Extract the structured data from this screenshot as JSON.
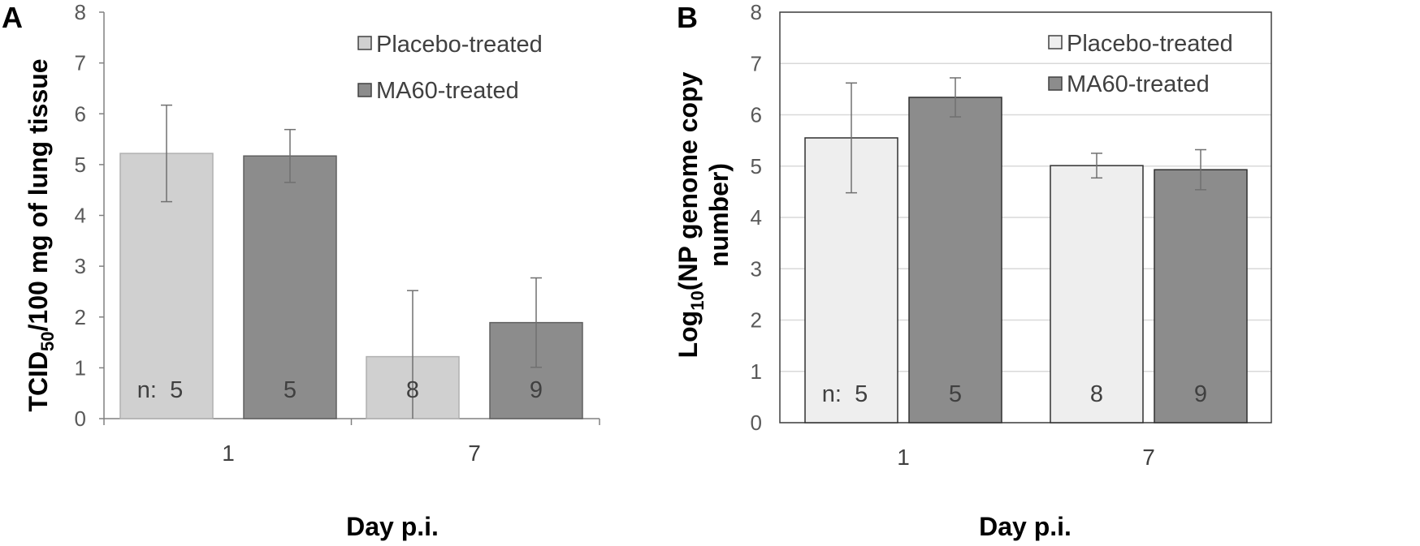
{
  "chart_data": [
    {
      "panel": "A",
      "type": "bar",
      "ylabel_main": "TCID",
      "ylabel_sub": "50",
      "ylabel_rest": "/100 mg of lung tissue",
      "xlabel": "Day p.i.",
      "ylim": [
        0,
        8
      ],
      "yticks": [
        "0",
        "1",
        "2",
        "3",
        "4",
        "5",
        "6",
        "7",
        "8"
      ],
      "gridlines": false,
      "legend_position": "top-right",
      "categories": [
        "1",
        "7"
      ],
      "n_prefix": "n:",
      "series": [
        {
          "name": "Placebo-treated",
          "color": "#d0d0d0",
          "values": [
            5.22,
            1.22
          ],
          "errors": [
            0.95,
            1.3
          ],
          "n": [
            "5",
            "8"
          ]
        },
        {
          "name": "MA60-treated",
          "color": "#8c8c8c",
          "values": [
            5.17,
            1.89
          ],
          "errors": [
            0.52,
            0.88
          ],
          "n": [
            "5",
            "9"
          ]
        }
      ]
    },
    {
      "panel": "B",
      "type": "bar",
      "ylabel_line1_main": "Log",
      "ylabel_line1_sub": "10",
      "ylabel_line1_rest": "(NP genome copy",
      "ylabel_line2": "number)",
      "xlabel": "Day p.i.",
      "ylim": [
        0,
        8
      ],
      "yticks": [
        "0",
        "1",
        "2",
        "3",
        "4",
        "5",
        "6",
        "7",
        "8"
      ],
      "gridlines": true,
      "legend_position": "top-right",
      "categories": [
        "1",
        "7"
      ],
      "n_prefix": "n:",
      "series": [
        {
          "name": "Placebo-treated",
          "color": "#eeeeee",
          "values": [
            5.55,
            5.01
          ],
          "errors": [
            1.07,
            0.24
          ],
          "n": [
            "5",
            "8"
          ]
        },
        {
          "name": "MA60-treated",
          "color": "#8c8c8c",
          "values": [
            6.34,
            4.93
          ],
          "errors": [
            0.38,
            0.39
          ],
          "n": [
            "5",
            "9"
          ]
        }
      ]
    }
  ]
}
